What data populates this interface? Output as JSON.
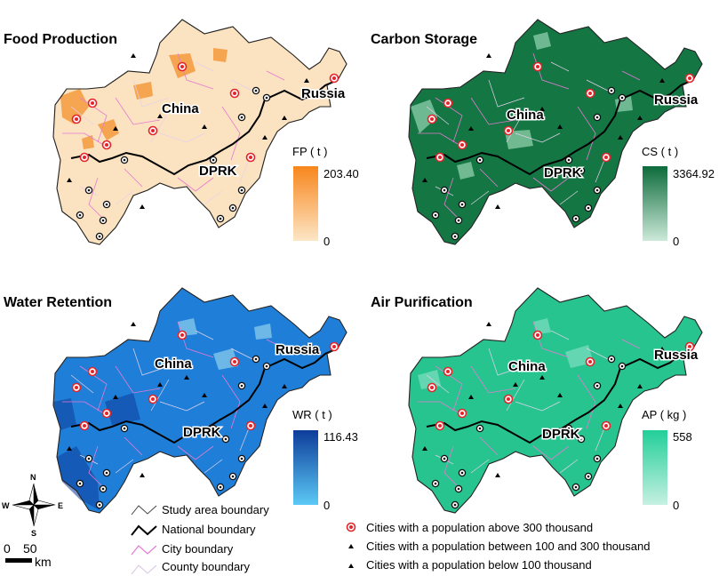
{
  "panels": [
    {
      "id": "fp",
      "title": "Food Production",
      "legend_title": "FP ( t )",
      "max": "203.40",
      "min": "0",
      "color_low": "#fde6c6",
      "color_high": "#f7861c",
      "fill": "#fbe2c0",
      "city_fill": "#f49a3c",
      "border": "#c8b090"
    },
    {
      "id": "cs",
      "title": "Carbon Storage",
      "legend_title": "CS ( t )",
      "max": "3364.92",
      "min": "0",
      "color_low": "#cde9da",
      "color_high": "#0c6b3a",
      "fill": "#137643",
      "city_fill": "#8fd0ac",
      "border": "#9ccdb4"
    },
    {
      "id": "wr",
      "title": "Water Retention",
      "legend_title": "WR ( t )",
      "max": "116.43",
      "min": "0",
      "color_low": "#5cc9f5",
      "color_high": "#0d3c9a",
      "fill": "#1f7fd8",
      "city_fill": "#8fd0ee",
      "border": "#c9b7e6"
    },
    {
      "id": "ap",
      "title": "Air Purification",
      "legend_title": "AP ( kg )",
      "max": "558",
      "min": "0",
      "color_low": "#c6f0e2",
      "color_high": "#22cf98",
      "fill": "#27c48f",
      "city_fill": "#7fe0c0",
      "border": "#a9c9d6"
    }
  ],
  "labels": {
    "china": "China",
    "russia": "Russia",
    "dprk": "DPRK"
  },
  "compass": {
    "n": "N",
    "s": "S",
    "e": "E",
    "w": "W"
  },
  "scale": {
    "zero": "0",
    "fifty": "50",
    "unit": "km"
  },
  "legend": {
    "study_area": "Study area boundary",
    "national": "National boundary",
    "city": "City boundary",
    "county": "County boundary",
    "pop_above": "Cities with a population above 300 thousand",
    "pop_between": "Cities with a population between 100 and 300 thousand",
    "pop_below": "Cities with a population below 100 thousand"
  }
}
